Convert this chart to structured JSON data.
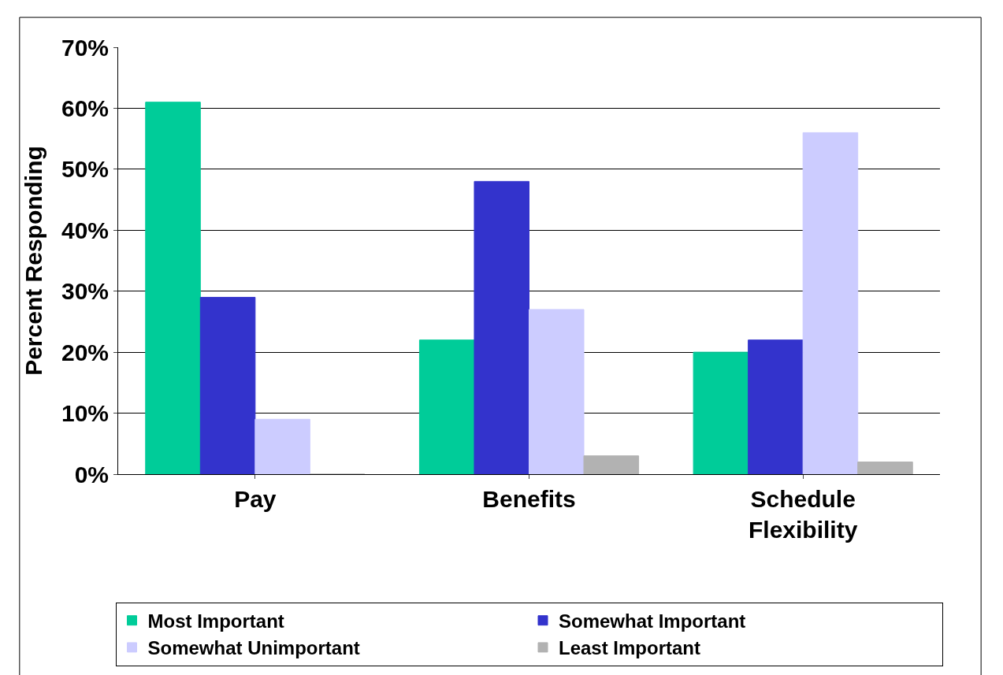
{
  "chart_data": {
    "type": "bar",
    "ylabel": "Percent Responding",
    "categories": [
      "Pay",
      "Benefits",
      "Schedule Flexibility"
    ],
    "series": [
      {
        "name": "Most Important",
        "color": "#00cc99",
        "values": [
          61,
          22,
          20
        ]
      },
      {
        "name": "Somewhat Important",
        "color": "#3333cc",
        "values": [
          29,
          48,
          22
        ]
      },
      {
        "name": "Somewhat Unimportant",
        "color": "#ccccff",
        "values": [
          9,
          27,
          56
        ]
      },
      {
        "name": "Least Important",
        "color": "#b2b2b2",
        "values": [
          0,
          3,
          2
        ]
      }
    ],
    "ylim": [
      0,
      70
    ],
    "yticks": [
      {
        "value": 0,
        "label": "0%"
      },
      {
        "value": 10,
        "label": "10%"
      },
      {
        "value": 20,
        "label": "20%"
      },
      {
        "value": 30,
        "label": "30%"
      },
      {
        "value": 40,
        "label": "40%"
      },
      {
        "value": 50,
        "label": "50%"
      },
      {
        "value": 60,
        "label": "60%"
      },
      {
        "value": 70,
        "label": "70%"
      }
    ],
    "grid": "y",
    "legend": "bottom"
  }
}
